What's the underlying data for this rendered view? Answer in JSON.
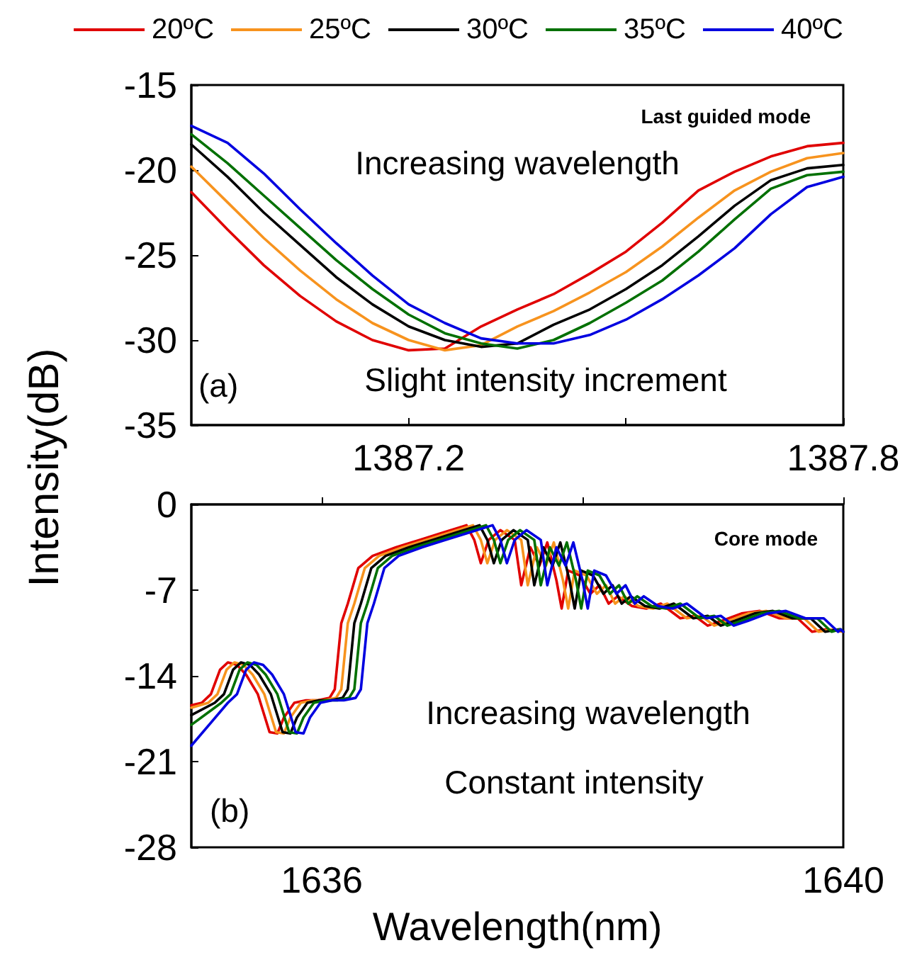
{
  "chart_data": [
    {
      "type": "line",
      "ylabel": "Intensity(dB)",
      "legend": "top",
      "annotations": [
        "Last guided mode",
        "Increasing wavelength",
        "Slight intensity increment",
        "(a)"
      ],
      "x": [
        1386.9,
        1386.95,
        1387.0,
        1387.05,
        1387.1,
        1387.15,
        1387.2,
        1387.25,
        1387.3,
        1387.35,
        1387.4,
        1387.45,
        1387.5,
        1387.55,
        1387.6,
        1387.65,
        1387.7,
        1387.75,
        1387.8
      ],
      "xlim": [
        1386.9,
        1387.8
      ],
      "xticks": [
        1387.2,
        {
          "value": 1387.5,
          "label": null
        },
        1387.8
      ],
      "ylim": [
        -35,
        -15
      ],
      "yticks": [
        -35,
        -30,
        -25,
        -20,
        -15
      ],
      "series": [
        {
          "name": "20ºC",
          "color": "#e00000",
          "values": [
            -21.3,
            -23.5,
            -25.6,
            -27.4,
            -28.9,
            -30.0,
            -30.6,
            -30.5,
            -29.2,
            -28.2,
            -27.3,
            -26.1,
            -24.8,
            -23.1,
            -21.2,
            -20.1,
            -19.2,
            -18.6,
            -18.4
          ]
        },
        {
          "name": "25ºC",
          "color": "#f7931e",
          "values": [
            -19.8,
            -21.9,
            -24.0,
            -25.9,
            -27.6,
            -29.0,
            -30.0,
            -30.6,
            -30.3,
            -29.2,
            -28.3,
            -27.2,
            -26.0,
            -24.5,
            -22.8,
            -21.2,
            -20.1,
            -19.3,
            -19.0
          ]
        },
        {
          "name": "30ºC",
          "color": "#000000",
          "values": [
            -18.5,
            -20.4,
            -22.5,
            -24.4,
            -26.3,
            -27.9,
            -29.2,
            -30.0,
            -30.4,
            -30.2,
            -29.1,
            -28.2,
            -27.0,
            -25.6,
            -23.9,
            -22.1,
            -20.6,
            -19.9,
            -19.7
          ]
        },
        {
          "name": "35ºC",
          "color": "#007000",
          "values": [
            -17.9,
            -19.6,
            -21.5,
            -23.4,
            -25.3,
            -27.0,
            -28.5,
            -29.6,
            -30.2,
            -30.5,
            -30.0,
            -29.0,
            -27.8,
            -26.5,
            -24.8,
            -22.9,
            -21.1,
            -20.3,
            -20.1
          ]
        },
        {
          "name": "40ºC",
          "color": "#0000e0",
          "values": [
            -17.4,
            -18.4,
            -20.2,
            -22.3,
            -24.3,
            -26.2,
            -27.9,
            -29.0,
            -29.9,
            -30.2,
            -30.2,
            -29.7,
            -28.8,
            -27.6,
            -26.2,
            -24.6,
            -22.6,
            -21.0,
            -20.4
          ]
        }
      ]
    },
    {
      "type": "line",
      "xlabel": "Wavelength(nm)",
      "annotations": [
        "Core mode",
        "Increasing wavelength",
        "Constant intensity",
        "(b)"
      ],
      "xlim": [
        1635,
        1640
      ],
      "xticks": [
        1636,
        {
          "value": 1638,
          "label": null
        },
        1640
      ],
      "ylim": [
        -28,
        0
      ],
      "yticks": [
        -28,
        -21,
        -14,
        -7,
        0
      ],
      "series": [
        {
          "color": "#e00000",
          "x": [
            1635.0,
            1635.08,
            1635.15,
            1635.22,
            1635.28,
            1635.35,
            1635.42,
            1635.51,
            1635.6,
            1635.66,
            1635.71,
            1635.79,
            1635.88,
            1635.97,
            1636.06,
            1636.1,
            1636.15,
            1636.2,
            1636.28,
            1636.39,
            1636.57,
            1636.75,
            1636.93,
            1637.11,
            1637.17,
            1637.22,
            1637.28,
            1637.37,
            1637.48,
            1637.53,
            1637.6,
            1637.67,
            1637.73,
            1637.8,
            1637.84,
            1637.89,
            1637.98,
            1638.06,
            1638.13,
            1638.2,
            1638.27,
            1638.38,
            1638.49,
            1638.6,
            1638.75,
            1638.86,
            1638.96,
            1639.07,
            1639.22,
            1639.36,
            1639.51,
            1639.65,
            1639.76,
            1639.87,
            1640.0
          ],
          "values": [
            -16.4,
            -16.2,
            -15.5,
            -13.5,
            -12.9,
            -13.1,
            -13.9,
            -15.5,
            -18.6,
            -18.7,
            -17.4,
            -16.2,
            -16.0,
            -16.0,
            -15.8,
            -15.1,
            -9.7,
            -8.1,
            -5.2,
            -4.2,
            -3.5,
            -2.9,
            -2.3,
            -1.7,
            -2.9,
            -4.8,
            -2.9,
            -2.1,
            -2.9,
            -6.6,
            -3.5,
            -5.0,
            -3.1,
            -6.2,
            -8.5,
            -5.4,
            -5.8,
            -7.3,
            -6.6,
            -8.1,
            -7.5,
            -8.3,
            -8.5,
            -8.1,
            -9.3,
            -9.1,
            -9.9,
            -9.5,
            -8.9,
            -8.7,
            -9.3,
            -9.3,
            -10.4,
            -10.2,
            -10.4
          ]
        },
        {
          "color": "#f7931e",
          "x": [
            1635.0,
            1635.13,
            1635.2,
            1635.27,
            1635.33,
            1635.4,
            1635.47,
            1635.56,
            1635.65,
            1635.71,
            1635.76,
            1635.84,
            1635.93,
            1636.02,
            1636.11,
            1636.15,
            1636.2,
            1636.25,
            1636.33,
            1636.44,
            1636.62,
            1636.8,
            1636.98,
            1637.16,
            1637.22,
            1637.27,
            1637.33,
            1637.42,
            1637.53,
            1637.58,
            1637.65,
            1637.72,
            1637.78,
            1637.85,
            1637.89,
            1637.94,
            1638.03,
            1638.11,
            1638.18,
            1638.25,
            1638.32,
            1638.43,
            1638.54,
            1638.65,
            1638.8,
            1638.91,
            1639.01,
            1639.12,
            1639.27,
            1639.41,
            1639.56,
            1639.7,
            1639.81,
            1639.92,
            1640.0
          ],
          "values": [
            -16.6,
            -16.2,
            -15.5,
            -13.5,
            -12.9,
            -13.1,
            -13.9,
            -15.5,
            -18.6,
            -18.7,
            -17.4,
            -16.2,
            -16.0,
            -16.0,
            -15.8,
            -15.1,
            -9.7,
            -8.1,
            -5.2,
            -4.2,
            -3.5,
            -2.9,
            -2.3,
            -1.7,
            -2.9,
            -4.8,
            -2.9,
            -2.1,
            -2.9,
            -6.6,
            -3.5,
            -5.0,
            -3.1,
            -6.2,
            -8.5,
            -5.4,
            -5.8,
            -7.3,
            -6.6,
            -8.1,
            -7.5,
            -8.3,
            -8.5,
            -8.1,
            -9.3,
            -9.1,
            -9.9,
            -9.5,
            -8.9,
            -8.7,
            -9.3,
            -9.3,
            -10.4,
            -10.2,
            -10.4
          ]
        },
        {
          "color": "#000000",
          "x": [
            1635.0,
            1635.18,
            1635.25,
            1635.32,
            1635.38,
            1635.45,
            1635.52,
            1635.61,
            1635.7,
            1635.76,
            1635.81,
            1635.89,
            1635.98,
            1636.07,
            1636.16,
            1636.2,
            1636.25,
            1636.3,
            1636.38,
            1636.49,
            1636.67,
            1636.85,
            1637.03,
            1637.21,
            1637.27,
            1637.32,
            1637.38,
            1637.47,
            1637.58,
            1637.63,
            1637.7,
            1637.77,
            1637.83,
            1637.9,
            1637.94,
            1637.99,
            1638.08,
            1638.16,
            1638.23,
            1638.3,
            1638.37,
            1638.48,
            1638.59,
            1638.7,
            1638.85,
            1638.96,
            1639.06,
            1639.17,
            1639.32,
            1639.46,
            1639.61,
            1639.75,
            1639.86,
            1639.97,
            1640.0
          ],
          "values": [
            -17.2,
            -16.2,
            -15.5,
            -13.5,
            -12.9,
            -13.1,
            -13.9,
            -15.5,
            -18.6,
            -18.7,
            -17.4,
            -16.2,
            -16.0,
            -16.0,
            -15.8,
            -15.1,
            -9.7,
            -8.1,
            -5.2,
            -4.2,
            -3.5,
            -2.9,
            -2.3,
            -1.7,
            -2.9,
            -4.8,
            -2.9,
            -2.1,
            -2.9,
            -6.6,
            -3.5,
            -5.0,
            -3.1,
            -6.2,
            -8.5,
            -5.4,
            -5.8,
            -7.3,
            -6.6,
            -8.1,
            -7.5,
            -8.3,
            -8.5,
            -8.1,
            -9.3,
            -9.1,
            -9.9,
            -9.5,
            -8.9,
            -8.7,
            -9.3,
            -9.3,
            -10.4,
            -10.2,
            -10.4
          ]
        },
        {
          "color": "#007000",
          "x": [
            1635.0,
            1635.23,
            1635.3,
            1635.37,
            1635.43,
            1635.5,
            1635.57,
            1635.66,
            1635.75,
            1635.81,
            1635.86,
            1635.94,
            1636.03,
            1636.12,
            1636.21,
            1636.25,
            1636.3,
            1636.35,
            1636.43,
            1636.54,
            1636.72,
            1636.9,
            1637.08,
            1637.26,
            1637.32,
            1637.37,
            1637.43,
            1637.52,
            1637.63,
            1637.68,
            1637.75,
            1637.82,
            1637.88,
            1637.95,
            1637.99,
            1638.04,
            1638.13,
            1638.21,
            1638.28,
            1638.35,
            1638.42,
            1638.53,
            1638.64,
            1638.75,
            1638.9,
            1639.01,
            1639.11,
            1639.22,
            1639.37,
            1639.51,
            1639.66,
            1639.8,
            1639.91,
            1639.98,
            1640.0
          ],
          "values": [
            -18.0,
            -16.2,
            -15.5,
            -13.5,
            -12.9,
            -13.1,
            -13.9,
            -15.5,
            -18.6,
            -18.7,
            -17.4,
            -16.2,
            -16.0,
            -16.0,
            -15.8,
            -15.1,
            -9.7,
            -8.1,
            -5.2,
            -4.2,
            -3.5,
            -2.9,
            -2.3,
            -1.7,
            -2.9,
            -4.8,
            -2.9,
            -2.1,
            -2.9,
            -6.6,
            -3.5,
            -5.0,
            -3.1,
            -6.2,
            -8.5,
            -5.4,
            -5.8,
            -7.3,
            -6.6,
            -8.1,
            -7.5,
            -8.3,
            -8.5,
            -8.1,
            -9.3,
            -9.1,
            -9.9,
            -9.5,
            -8.9,
            -8.7,
            -9.3,
            -9.3,
            -10.4,
            -10.2,
            -10.4
          ]
        },
        {
          "color": "#0000e0",
          "x": [
            1635.0,
            1635.28,
            1635.35,
            1635.42,
            1635.48,
            1635.55,
            1635.62,
            1635.71,
            1635.8,
            1635.86,
            1635.91,
            1635.99,
            1636.08,
            1636.17,
            1636.26,
            1636.3,
            1636.35,
            1636.4,
            1636.48,
            1636.59,
            1636.77,
            1636.95,
            1637.13,
            1637.31,
            1637.37,
            1637.42,
            1637.48,
            1637.57,
            1637.68,
            1637.73,
            1637.8,
            1637.87,
            1637.93,
            1638.0,
            1638.04,
            1638.09,
            1638.18,
            1638.26,
            1638.33,
            1638.4,
            1638.47,
            1638.58,
            1638.69,
            1638.8,
            1638.95,
            1639.06,
            1639.16,
            1639.27,
            1639.42,
            1639.56,
            1639.71,
            1639.85,
            1639.96,
            1639.98,
            1640.0
          ],
          "values": [
            -19.7,
            -16.2,
            -15.5,
            -13.5,
            -12.9,
            -13.1,
            -13.9,
            -15.5,
            -18.6,
            -18.7,
            -17.4,
            -16.2,
            -16.0,
            -16.0,
            -15.8,
            -15.1,
            -9.7,
            -8.1,
            -5.2,
            -4.2,
            -3.5,
            -2.9,
            -2.3,
            -1.7,
            -2.9,
            -4.8,
            -2.9,
            -2.1,
            -2.9,
            -6.6,
            -3.5,
            -5.0,
            -3.1,
            -6.2,
            -8.5,
            -5.4,
            -5.8,
            -7.3,
            -6.6,
            -8.1,
            -7.5,
            -8.3,
            -8.5,
            -8.1,
            -9.3,
            -9.1,
            -9.9,
            -9.5,
            -8.9,
            -8.7,
            -9.3,
            -9.3,
            -10.4,
            -10.2,
            -10.4
          ]
        }
      ]
    }
  ]
}
